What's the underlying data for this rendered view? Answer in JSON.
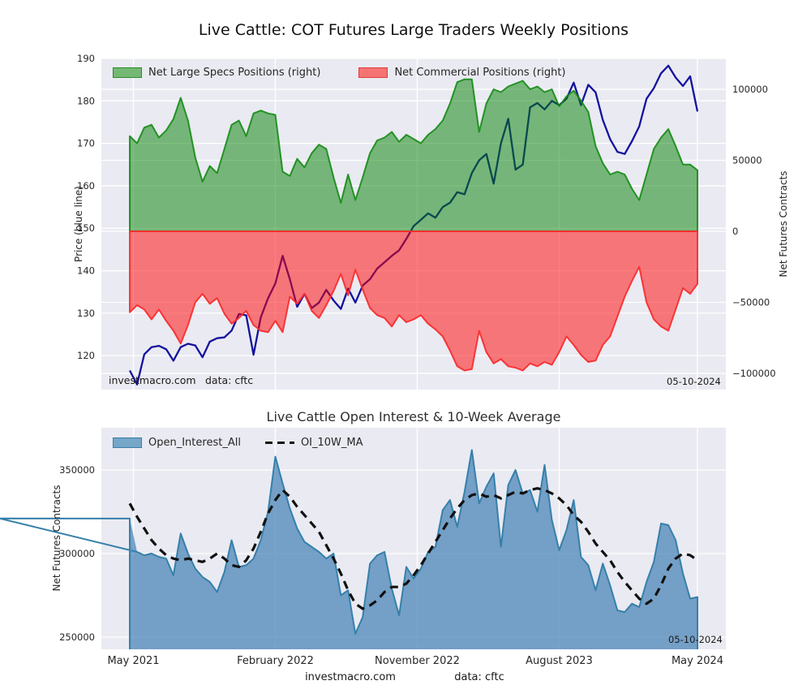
{
  "colors": {
    "figure_bg": "#ffffff",
    "plot_bg": "#eaeaf2",
    "grid": "#ffffff",
    "tick": "#262626",
    "price_line": "#12129e",
    "specs_fill": "rgba(0,128,0,0.5)",
    "specs_edge": "rgba(20,140,20,0.9)",
    "comm_fill": "rgba(255,0,0,0.5)",
    "comm_edge": "rgba(250,45,45,0.95)",
    "oi_fill": "rgba(70,130,180,0.72)",
    "oi_edge": "#3580ab",
    "ma_line": "#111111"
  },
  "top_chart": {
    "title": "Live Cattle: COT Futures Large Traders Weekly Positions",
    "legend": [
      {
        "label": "Net Large Specs Positions (right)",
        "color": "#74b874"
      },
      {
        "label": "Net Commercial Positions (right)",
        "color": "#f47474"
      }
    ],
    "ylabel_left": "Price (blue line)",
    "ylabel_right": "Net Futures Contracts",
    "watermark": "investmacro.com",
    "source": "data: cftc",
    "date": "05-10-2024"
  },
  "bottom_chart": {
    "title": "Live Cattle Open Interest & 10-Week Average",
    "legend": [
      {
        "label": "Open_Interest_All",
        "color": "#74a7c8"
      },
      {
        "label": "OI_10W_MA",
        "color": "#111111"
      }
    ],
    "ylabel_left": "Net Futures Contracts",
    "date": "05-10-2024",
    "footer_watermark": "investmacro.com",
    "footer_source": "data: cftc"
  },
  "chart_data": [
    {
      "id": "cot",
      "type": "area",
      "title": "Live Cattle: COT Futures Large Traders Weekly Positions",
      "x": {
        "unit": "weeks since 2021-05",
        "start": 0,
        "step": 2,
        "count": 79,
        "range": [
          -7.8,
          163.8
        ],
        "tick_positions": [
          1,
          40,
          79,
          118,
          156
        ],
        "tick_labels": [
          "",
          "",
          "",
          "",
          ""
        ]
      },
      "axes": {
        "left": {
          "label": "Price (blue line)",
          "range": [
            112,
            190
          ],
          "ticks": [
            190,
            180,
            170,
            160,
            150,
            140,
            130,
            120
          ],
          "tick_labels": [
            "190",
            "180",
            "170",
            "160",
            "150",
            "140",
            "130",
            "120"
          ]
        },
        "right": {
          "label": "Net Futures Contracts",
          "range": [
            -111400,
            121700
          ],
          "ticks": [
            100000,
            50000,
            0,
            -50000,
            -100000
          ],
          "tick_labels": [
            "100000",
            "50000",
            "0",
            "−50000",
            "−100000"
          ]
        }
      },
      "legend_position": "upper left",
      "grid": true,
      "series": [
        {
          "name": "Price",
          "axis": "left",
          "type": "line",
          "z": 1,
          "width": 2.3,
          "values": [
            116.5,
            113.2,
            120.3,
            122,
            122.3,
            121.5,
            118.8,
            122,
            122.8,
            122.4,
            119.6,
            123.3,
            124.1,
            124.3,
            125.9,
            129.8,
            129.5,
            120.2,
            129,
            133.5,
            137,
            143.5,
            138,
            131.5,
            134.5,
            131.2,
            132.5,
            135.5,
            133,
            131,
            135.8,
            132.5,
            136.5,
            138,
            140.5,
            142,
            143.5,
            144.8,
            147.5,
            150.5,
            152,
            153.5,
            152.5,
            155,
            156,
            158.5,
            158,
            163,
            166,
            167.5,
            160.5,
            170,
            175.8,
            163.8,
            165,
            178.5,
            179.5,
            178,
            180,
            179,
            180.5,
            184.3,
            179,
            183.8,
            182,
            175.5,
            171,
            168,
            167.5,
            170.5,
            174,
            180.5,
            183,
            186.5,
            188.3,
            185.5,
            183.5,
            185.8,
            177.5
          ]
        },
        {
          "name": "Net Large Specs Positions (right)",
          "axis": "right",
          "type": "area",
          "base": 0,
          "close": true,
          "z": 2,
          "width": 2,
          "values": [
            67000,
            62000,
            73000,
            75000,
            66000,
            71000,
            79000,
            94000,
            78000,
            52000,
            35000,
            46000,
            41000,
            58000,
            75000,
            78000,
            67000,
            83000,
            85000,
            83000,
            82000,
            42000,
            39000,
            51000,
            45000,
            55000,
            61000,
            58000,
            38000,
            20000,
            40000,
            22000,
            38000,
            55000,
            64000,
            66000,
            70000,
            63000,
            68000,
            65000,
            62000,
            68000,
            72000,
            78000,
            90000,
            105000,
            107000,
            107000,
            70000,
            90000,
            100000,
            98000,
            102000,
            104000,
            106000,
            100000,
            102000,
            98000,
            100000,
            88000,
            95000,
            99000,
            92000,
            84000,
            60000,
            48000,
            40000,
            42000,
            40000,
            30000,
            22000,
            40000,
            58000,
            66000,
            72000,
            60000,
            47000,
            47000,
            43000
          ]
        },
        {
          "name": "Net Commercial Positions (right)",
          "axis": "right",
          "type": "area",
          "base": 0,
          "close": true,
          "z": 3,
          "width": 2,
          "values": [
            -57000,
            -52000,
            -55000,
            -62000,
            -55000,
            -63000,
            -70000,
            -79000,
            -66000,
            -50000,
            -44000,
            -51000,
            -47000,
            -58000,
            -65000,
            -61000,
            -56000,
            -66000,
            -70000,
            -71000,
            -63000,
            -71000,
            -46000,
            -51000,
            -44000,
            -56000,
            -61000,
            -52000,
            -42000,
            -30000,
            -45000,
            -27000,
            -41000,
            -54000,
            -59000,
            -61000,
            -67000,
            -59000,
            -64000,
            -62000,
            -59000,
            -65000,
            -69000,
            -74000,
            -84000,
            -95000,
            -98000,
            -97000,
            -70000,
            -85000,
            -93000,
            -90000,
            -95000,
            -96000,
            -98000,
            -93000,
            -95000,
            -92000,
            -94000,
            -85000,
            -74000,
            -80000,
            -87000,
            -92000,
            -91000,
            -80000,
            -74000,
            -60000,
            -46000,
            -35000,
            -25000,
            -50000,
            -62000,
            -67000,
            -70000,
            -55000,
            -40000,
            -44000,
            -37000
          ]
        }
      ],
      "annotations": [
        "investmacro.com",
        "data: cftc",
        "05-10-2024"
      ]
    },
    {
      "id": "oi",
      "type": "area",
      "title": "Live Cattle Open Interest & 10-Week Average",
      "x": {
        "unit": "weeks since 2021-05",
        "start": 0,
        "step": 2,
        "count": 79,
        "range": [
          -7.8,
          163.8
        ],
        "tick_positions": [
          1,
          40,
          79,
          118,
          156
        ],
        "tick_labels": [
          "May 2021",
          "February 2022",
          "November 2022",
          "August 2023",
          "May 2024"
        ]
      },
      "axes": {
        "left": {
          "label": "Net Futures Contracts",
          "range": [
            242700,
            375300
          ],
          "ticks": [
            350000,
            300000,
            250000
          ],
          "tick_labels": [
            "350000",
            "300000",
            "250000"
          ]
        }
      },
      "legend_position": "upper left",
      "grid": true,
      "series": [
        {
          "name": "Open_Interest_All",
          "axis": "left",
          "type": "area",
          "base": 242700,
          "close": false,
          "z": 1,
          "width": 2,
          "values": [
            321000,
            301000,
            299000,
            300000,
            298000,
            297000,
            287000,
            312000,
            300000,
            291000,
            286000,
            283000,
            277000,
            289000,
            308000,
            292000,
            293000,
            297000,
            308000,
            325000,
            358000,
            342000,
            327000,
            315000,
            307000,
            304000,
            301000,
            297000,
            300000,
            275000,
            278000,
            252000,
            262000,
            294000,
            299000,
            301000,
            279000,
            263000,
            292000,
            285000,
            291000,
            301000,
            304000,
            326000,
            332000,
            316000,
            337000,
            362000,
            330000,
            340000,
            348000,
            304000,
            341000,
            350000,
            336000,
            338000,
            325000,
            353000,
            320000,
            302000,
            314000,
            332000,
            298000,
            293000,
            278000,
            294000,
            281000,
            266000,
            265000,
            270000,
            268000,
            283000,
            295000,
            318000,
            317000,
            308000,
            288000,
            273000,
            274000
          ]
        },
        {
          "name": "OI_10W_MA",
          "axis": "left",
          "type": "line",
          "z": 2,
          "width": 3.2,
          "dash": "10 7",
          "values": [
            330000,
            322000,
            315000,
            308000,
            303000,
            299000,
            297000,
            296000,
            297000,
            296000,
            295000,
            297000,
            300000,
            297000,
            293000,
            292000,
            296000,
            303000,
            313000,
            324000,
            332000,
            338000,
            334000,
            328000,
            323000,
            318000,
            313000,
            305000,
            297000,
            288000,
            278000,
            270000,
            267000,
            269000,
            272000,
            277000,
            280000,
            280000,
            282000,
            287000,
            293000,
            300000,
            307000,
            314000,
            321000,
            327000,
            332000,
            335000,
            336000,
            334000,
            335000,
            333000,
            335000,
            337000,
            336000,
            338000,
            339000,
            338000,
            336000,
            333000,
            329000,
            323000,
            319000,
            313000,
            306000,
            301000,
            296000,
            289000,
            283000,
            278000,
            273000,
            270000,
            273000,
            281000,
            291000,
            297000,
            300000,
            299000,
            296000
          ]
        }
      ],
      "annotations": [
        "05-10-2024",
        "investmacro.com",
        "data: cftc"
      ]
    }
  ]
}
